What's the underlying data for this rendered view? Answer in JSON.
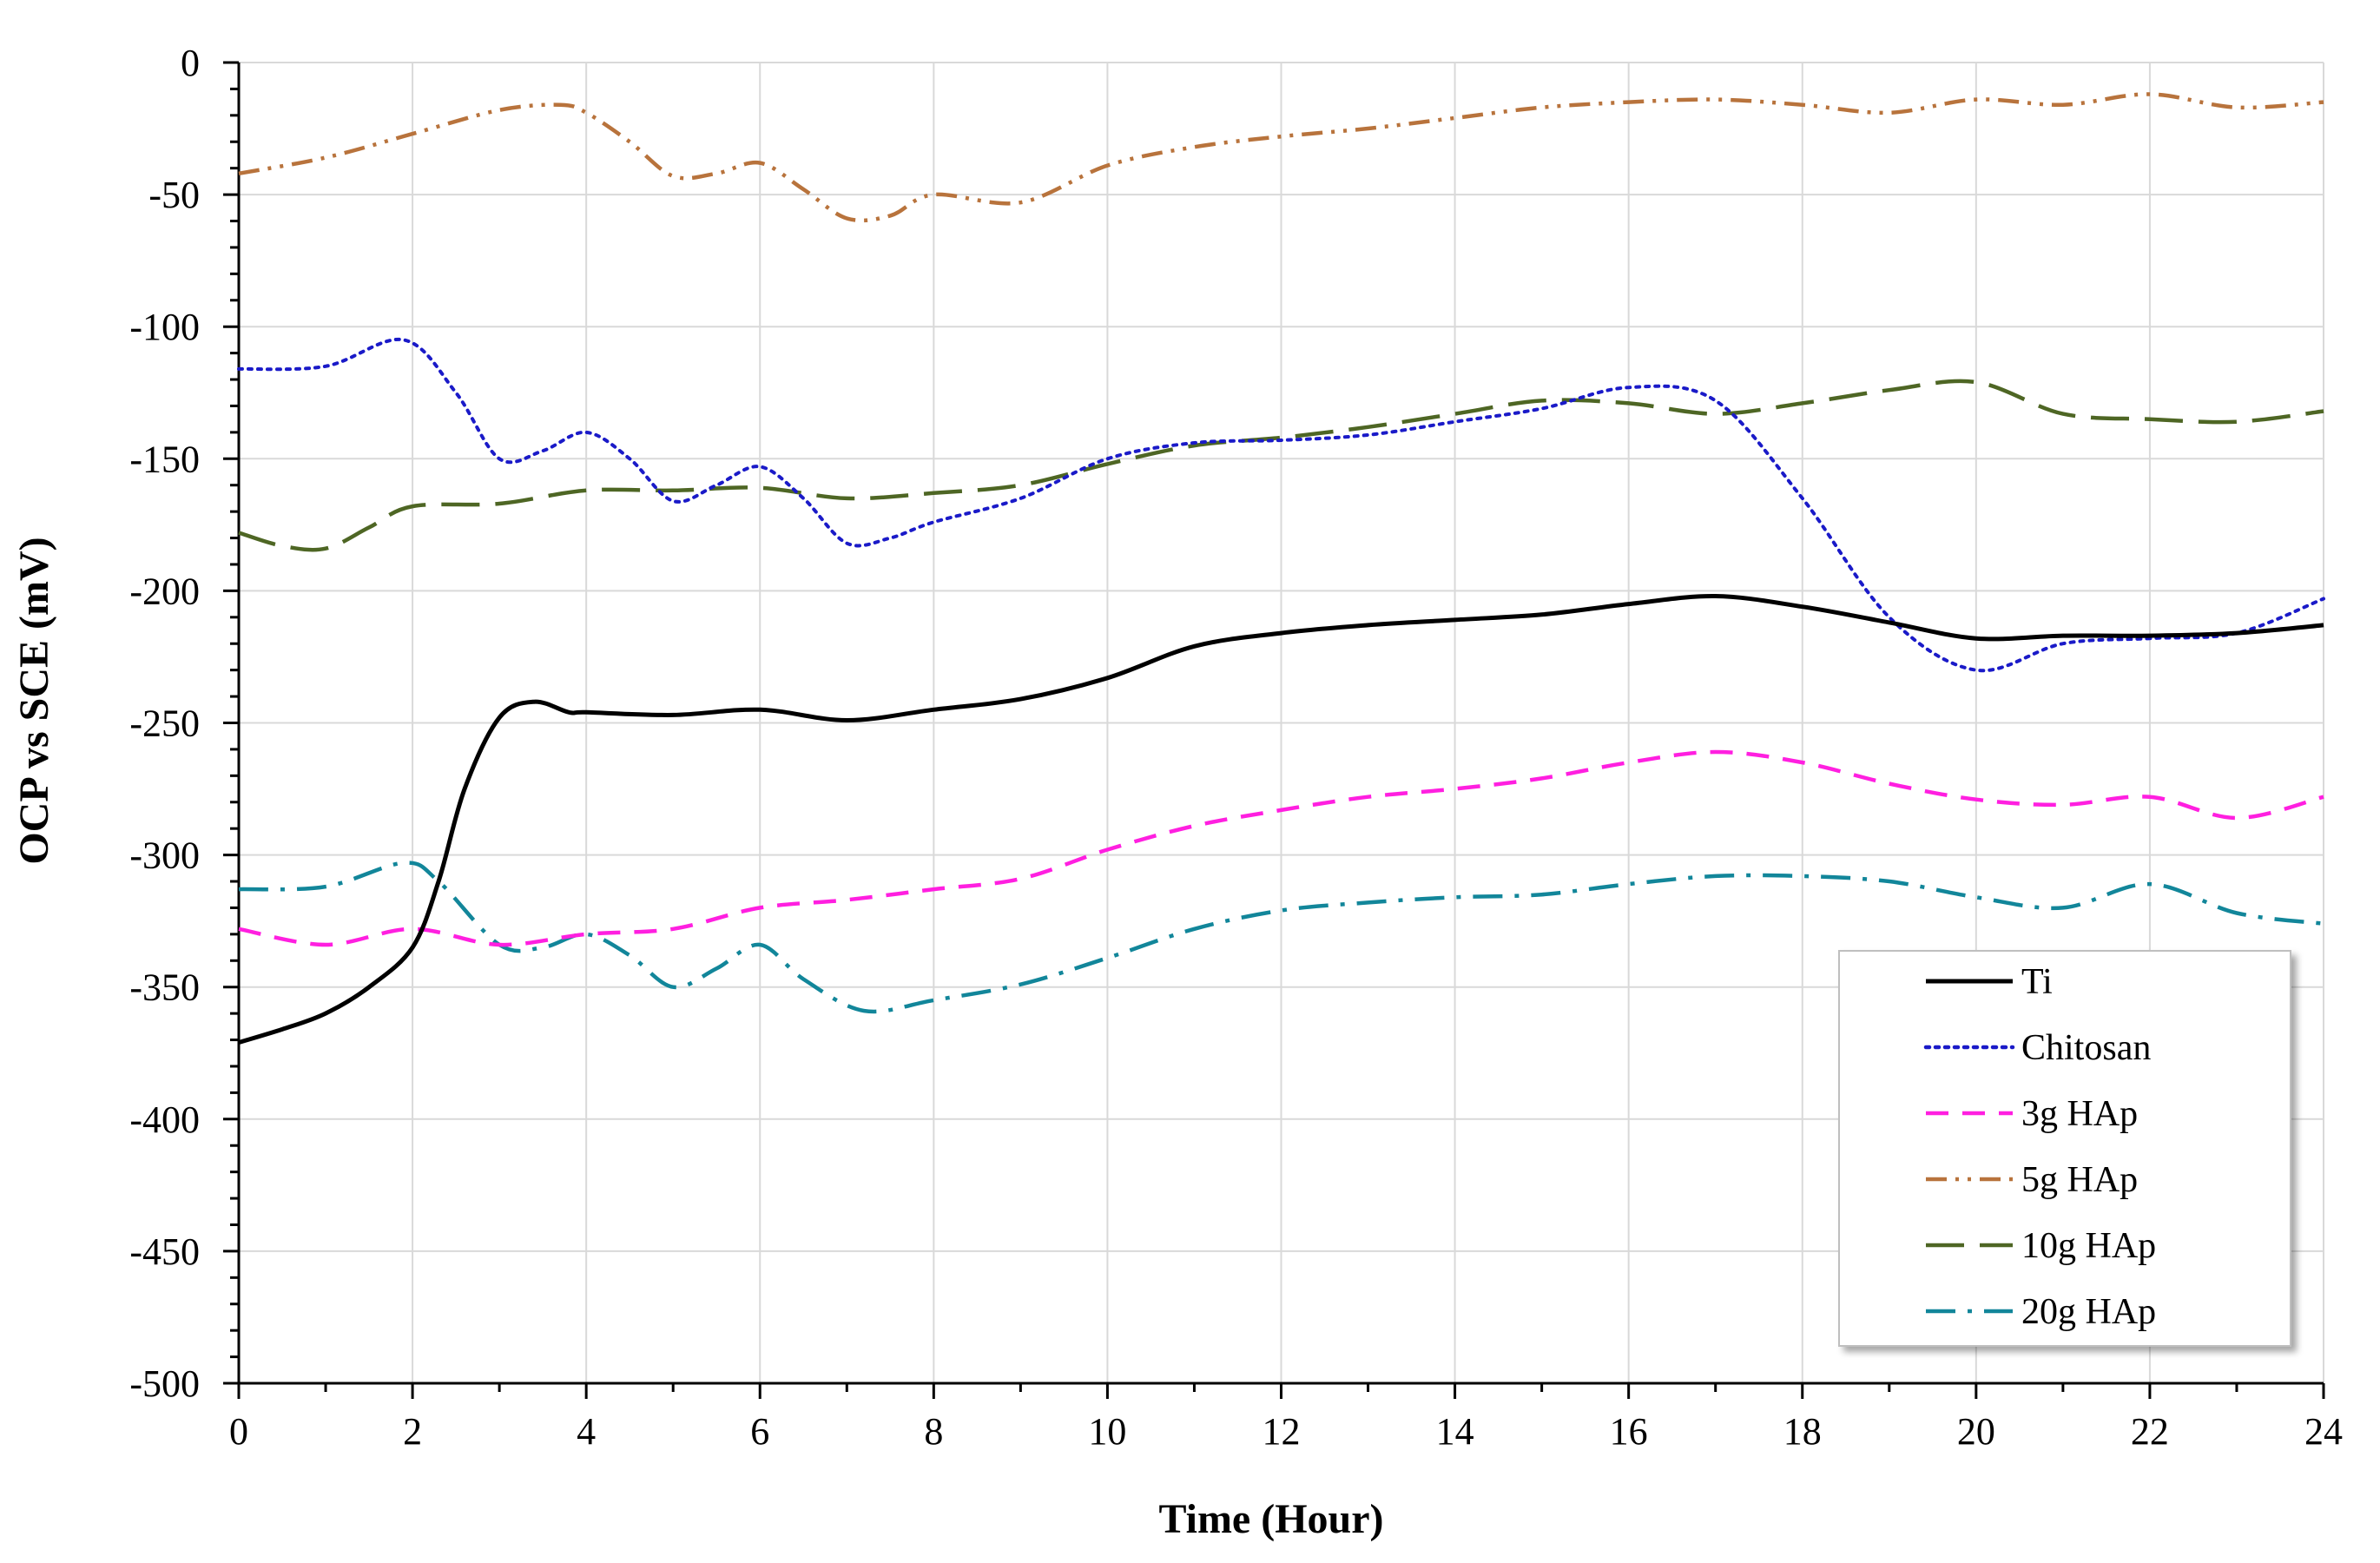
{
  "chart_data": {
    "type": "line",
    "title": "",
    "xlabel": "Time (Hour)",
    "ylabel": "OCP vs SCE (mV)",
    "xlim": [
      0,
      24
    ],
    "ylim": [
      -500,
      0
    ],
    "x_major_ticks": [
      0,
      2,
      4,
      6,
      8,
      10,
      12,
      14,
      16,
      18,
      20,
      22,
      24
    ],
    "x_tick_labels": [
      "0",
      "2",
      "4",
      "6",
      "8",
      "10",
      "12",
      "14",
      "16",
      "18",
      "20",
      "22",
      "24"
    ],
    "y_major_ticks": [
      0,
      -50,
      -100,
      -150,
      -200,
      -250,
      -300,
      -350,
      -400,
      -450,
      -500
    ],
    "y_tick_labels": [
      "0",
      "-50",
      "-100",
      "-150",
      "-200",
      "-250",
      "-300",
      "-350",
      "-400",
      "-450",
      "-500"
    ],
    "grid": true,
    "legend_position": "bottom-right",
    "series": [
      {
        "name": "Ti",
        "color": "#000000",
        "style": "solid",
        "x": [
          0,
          0.5,
          1,
          1.5,
          2,
          2.3,
          2.6,
          3,
          3.4,
          3.8,
          4,
          5,
          6,
          7,
          8,
          9,
          10,
          11,
          12,
          13,
          14,
          15,
          16,
          17,
          18,
          19,
          20,
          21,
          22,
          23,
          24
        ],
        "y": [
          -371,
          -366,
          -360,
          -350,
          -335,
          -310,
          -275,
          -248,
          -242,
          -246,
          -246,
          -247,
          -245,
          -249,
          -245,
          -241,
          -233,
          -221,
          -216,
          -213,
          -211,
          -209,
          -205,
          -202,
          -206,
          -212,
          -218,
          -217,
          -217,
          -216,
          -213
        ]
      },
      {
        "name": "Chitosan",
        "color": "#1a1ac8",
        "style": "dotted",
        "x": [
          0,
          1,
          1.9,
          2.5,
          3,
          3.5,
          4,
          4.5,
          5,
          5.5,
          6,
          6.5,
          7,
          7.5,
          8,
          9,
          10,
          11,
          12,
          13,
          14,
          15,
          16,
          17,
          18,
          19,
          20,
          21,
          22,
          23,
          24
        ],
        "y": [
          -116,
          -115,
          -105,
          -125,
          -150,
          -147,
          -140,
          -150,
          -166,
          -160,
          -153,
          -165,
          -182,
          -180,
          -174,
          -165,
          -150,
          -144,
          -143,
          -141,
          -136,
          -131,
          -123,
          -128,
          -165,
          -210,
          -230,
          -220,
          -218,
          -216,
          -203
        ]
      },
      {
        "name": "3g HAp",
        "color": "#ff1fe0",
        "style": "dashed",
        "x": [
          0,
          1,
          2,
          3,
          4,
          5,
          6,
          7,
          8,
          9,
          10,
          11,
          12,
          13,
          14,
          15,
          16,
          17,
          18,
          19,
          20,
          21,
          22,
          23,
          24
        ],
        "y": [
          -328,
          -334,
          -328,
          -334,
          -330,
          -328,
          -320,
          -317,
          -313,
          -309,
          -298,
          -289,
          -283,
          -278,
          -275,
          -271,
          -265,
          -261,
          -265,
          -273,
          -279,
          -281,
          -278,
          -286,
          -278
        ]
      },
      {
        "name": "5g HAp",
        "color": "#b8733c",
        "style": "dash-dot-dot",
        "x": [
          0,
          1,
          2,
          3,
          3.7,
          4,
          4.5,
          5,
          5.5,
          6,
          6.5,
          7,
          7.5,
          8,
          9,
          10,
          11,
          12,
          13,
          14,
          15,
          16,
          17,
          18,
          19,
          20,
          21,
          22,
          23,
          24
        ],
        "y": [
          -42,
          -36,
          -27,
          -18,
          -16,
          -19,
          -30,
          -43,
          -42,
          -38,
          -48,
          -59,
          -58,
          -50,
          -53,
          -39,
          -32,
          -28,
          -25,
          -21,
          -17,
          -15,
          -14,
          -16,
          -19,
          -14,
          -16,
          -12,
          -17,
          -15
        ]
      },
      {
        "name": "10g HAp",
        "color": "#4e6624",
        "style": "long-dash",
        "x": [
          0,
          0.5,
          1,
          1.5,
          2,
          3,
          4,
          5,
          6,
          7,
          8,
          9,
          10,
          11,
          12,
          13,
          14,
          15,
          16,
          17,
          18,
          19,
          20,
          21,
          22,
          23,
          24
        ],
        "y": [
          -178,
          -183,
          -184,
          -176,
          -168,
          -167,
          -162,
          -162,
          -161,
          -165,
          -163,
          -160,
          -152,
          -145,
          -142,
          -138,
          -133,
          -128,
          -129,
          -133,
          -129,
          -124,
          -121,
          -133,
          -135,
          -136,
          -132
        ]
      },
      {
        "name": "20g HAp",
        "color": "#12869a",
        "style": "dash-dot",
        "x": [
          0,
          1,
          1.9,
          2.3,
          3,
          3.5,
          4,
          4.5,
          5,
          5.5,
          6,
          6.5,
          7.2,
          8,
          9,
          10,
          11,
          12,
          13,
          14,
          15,
          16,
          17,
          18,
          19,
          20,
          21,
          22,
          23,
          24
        ],
        "y": [
          -313,
          -312,
          -303,
          -310,
          -334,
          -335,
          -330,
          -338,
          -350,
          -343,
          -334,
          -347,
          -359,
          -355,
          -349,
          -339,
          -328,
          -321,
          -318,
          -316,
          -315,
          -311,
          -308,
          -308,
          -310,
          -316,
          -320,
          -311,
          -322,
          -326
        ]
      }
    ]
  }
}
